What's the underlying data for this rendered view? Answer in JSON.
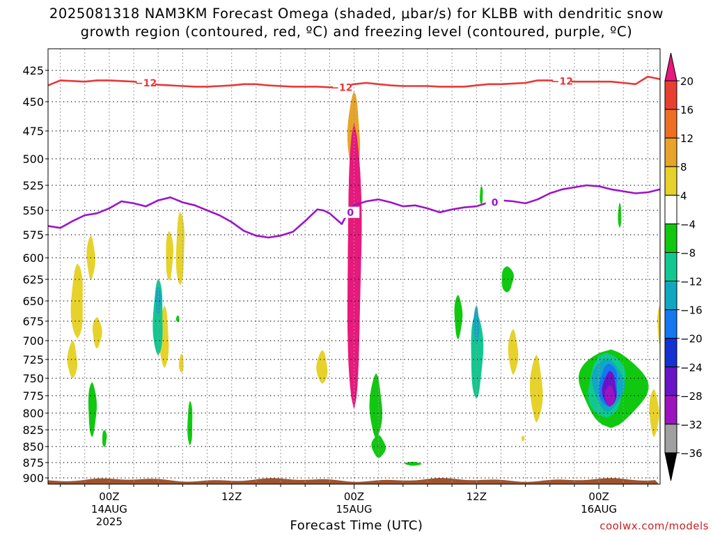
{
  "title_line1": "2025081318 NAM3KM Forecast Omega (shaded, μbar/s) for KLBB with dendritic snow",
  "title_line2": "growth region (contoured, red, ºC) and freezing level (contoured, purple, ºC)",
  "xlabel": "Forecast Time (UTC)",
  "credit": "coolwx.com/models",
  "chart_data": {
    "type": "heatmap",
    "title": "2025081318 NAM3KM Forecast Omega (shaded, μbar/s) for KLBB with dendritic snow growth region (contoured, red, ºC) and freezing level (contoured, purple, ºC)",
    "xlabel": "Forecast Time (UTC)",
    "ylabel": "",
    "x_unit": "hours since 2025-08-13 18Z",
    "xlim": [
      1,
      51
    ],
    "ylim": [
      906,
      400
    ],
    "y_ticks": [
      425,
      450,
      475,
      500,
      525,
      550,
      575,
      600,
      625,
      650,
      675,
      700,
      725,
      750,
      775,
      800,
      825,
      850,
      875,
      900
    ],
    "x_ticks": [
      {
        "x": 6,
        "label": "00Z",
        "sub": [
          "14AUG",
          "2025"
        ]
      },
      {
        "x": 16,
        "label": "12Z",
        "sub": []
      },
      {
        "x": 26,
        "label": "00Z",
        "sub": [
          "15AUG"
        ]
      },
      {
        "x": 36,
        "label": "12Z",
        "sub": []
      },
      {
        "x": 46,
        "label": "00Z",
        "sub": [
          "16AUG"
        ]
      }
    ],
    "grid": true,
    "colorbar": {
      "labels": [
        "20",
        "16",
        "12",
        "8",
        "4",
        "−4",
        "−8",
        "−12",
        "−16",
        "−20",
        "−24",
        "−28",
        "−32",
        "−36"
      ],
      "levels": [
        20,
        16,
        12,
        8,
        4,
        -4,
        -8,
        -12,
        -16,
        -20,
        -24,
        -28,
        -32,
        -36
      ],
      "colors": [
        "#e8187c",
        "#e84030",
        "#ee6e22",
        "#e8a428",
        "#e6d22a",
        "#ffffff",
        "#10c810",
        "#10c890",
        "#10a8c0",
        "#1478f0",
        "#1432d2",
        "#6a14c8",
        "#9c14c0",
        "#a0a0a0",
        "#000000"
      ]
    },
    "minus12_contour": {
      "color": "#e83838",
      "label": "−12",
      "points": [
        [
          1,
          437
        ],
        [
          2,
          433
        ],
        [
          3,
          433.5
        ],
        [
          4,
          434
        ],
        [
          5,
          433
        ],
        [
          6,
          433
        ],
        [
          7,
          433.5
        ],
        [
          8,
          434
        ],
        [
          9,
          435
        ],
        [
          10,
          436.5
        ],
        [
          11,
          437
        ],
        [
          12,
          437.5
        ],
        [
          13,
          438
        ],
        [
          14,
          438
        ],
        [
          15,
          437.5
        ],
        [
          16,
          437
        ],
        [
          17,
          436
        ],
        [
          18,
          436
        ],
        [
          19,
          437
        ],
        [
          20,
          437.5
        ],
        [
          21,
          438
        ],
        [
          22,
          438
        ],
        [
          23,
          438
        ],
        [
          24,
          438.5
        ],
        [
          25,
          438.5
        ],
        [
          26,
          436
        ],
        [
          27,
          435
        ],
        [
          28,
          436
        ],
        [
          29,
          437
        ],
        [
          30,
          437.5
        ],
        [
          31,
          437.5
        ],
        [
          32,
          437.5
        ],
        [
          33,
          438
        ],
        [
          34,
          438
        ],
        [
          35,
          438
        ],
        [
          36,
          437
        ],
        [
          37,
          436
        ],
        [
          38,
          436
        ],
        [
          39,
          435.5
        ],
        [
          40,
          435
        ],
        [
          41,
          433
        ],
        [
          42,
          433
        ],
        [
          43,
          433.5
        ],
        [
          44,
          434
        ],
        [
          45,
          434
        ],
        [
          46,
          434
        ],
        [
          47,
          434
        ],
        [
          48,
          435
        ],
        [
          49,
          436
        ],
        [
          50,
          430
        ],
        [
          51,
          432
        ]
      ],
      "label_x": [
        9,
        25,
        43
      ]
    },
    "freezing_contour": {
      "color": "#9c14c8",
      "label": "0",
      "points": [
        [
          1,
          566
        ],
        [
          2,
          568
        ],
        [
          3,
          561
        ],
        [
          4,
          555
        ],
        [
          5,
          553
        ],
        [
          6,
          548
        ],
        [
          7,
          541
        ],
        [
          8,
          543
        ],
        [
          9,
          546
        ],
        [
          10,
          540
        ],
        [
          11,
          537
        ],
        [
          12,
          542
        ],
        [
          13,
          545
        ],
        [
          14,
          550
        ],
        [
          15,
          555
        ],
        [
          16,
          562
        ],
        [
          17,
          571
        ],
        [
          18,
          576
        ],
        [
          19,
          578
        ],
        [
          20,
          576
        ],
        [
          21,
          572
        ],
        [
          22,
          561
        ],
        [
          23,
          549
        ],
        [
          23.5,
          550
        ],
        [
          24,
          553
        ],
        [
          25,
          564
        ],
        [
          25.5,
          552
        ],
        [
          26,
          545
        ],
        [
          27,
          541
        ],
        [
          28,
          539
        ],
        [
          29,
          542
        ],
        [
          30,
          546
        ],
        [
          31,
          545
        ],
        [
          32,
          548
        ],
        [
          33,
          552
        ],
        [
          34,
          549
        ],
        [
          35,
          547
        ],
        [
          36,
          546
        ],
        [
          37,
          542
        ],
        [
          38,
          540
        ],
        [
          39,
          541
        ],
        [
          40,
          543
        ],
        [
          41,
          539
        ],
        [
          42,
          533
        ],
        [
          43,
          529
        ],
        [
          44,
          527
        ],
        [
          45,
          525
        ],
        [
          46,
          526
        ],
        [
          47,
          529
        ],
        [
          48,
          531
        ],
        [
          49,
          533
        ],
        [
          50,
          532
        ],
        [
          51,
          529
        ]
      ],
      "label_x": [
        25.7,
        37.5
      ]
    },
    "omega_features": [
      {
        "sign": "+",
        "x": 26,
        "p": 610,
        "w": 0.6,
        "h": 315,
        "v": 20
      },
      {
        "sign": "+",
        "x": 26,
        "p": 478,
        "w": 0.45,
        "h": 75,
        "v": 8
      },
      {
        "sign": "+",
        "x": 26,
        "p": 700,
        "w": 0.35,
        "h": 60,
        "v": 14
      },
      {
        "sign": "+",
        "x": 25.9,
        "p": 725,
        "w": 0.35,
        "h": 40,
        "v": 6
      },
      {
        "sign": "+",
        "x": 3.4,
        "p": 650,
        "w": 0.5,
        "h": 90,
        "v": 6
      },
      {
        "sign": "+",
        "x": 3.0,
        "p": 725,
        "w": 0.35,
        "h": 50,
        "v": 5
      },
      {
        "sign": "+",
        "x": 4.5,
        "p": 600,
        "w": 0.3,
        "h": 50,
        "v": 5
      },
      {
        "sign": "+",
        "x": 5.0,
        "p": 690,
        "w": 0.35,
        "h": 40,
        "v": 5
      },
      {
        "sign": "+",
        "x": 10.5,
        "p": 695,
        "w": 0.35,
        "h": 80,
        "v": 6
      },
      {
        "sign": "+",
        "x": 10.9,
        "p": 598,
        "w": 0.3,
        "h": 55,
        "v": 5
      },
      {
        "sign": "+",
        "x": 11.8,
        "p": 590,
        "w": 0.35,
        "h": 80,
        "v": 5
      },
      {
        "sign": "+",
        "x": 11.9,
        "p": 730,
        "w": 0.18,
        "h": 25,
        "v": 5
      },
      {
        "sign": "+",
        "x": 23.4,
        "p": 735,
        "w": 0.4,
        "h": 45,
        "v": 5
      },
      {
        "sign": "+",
        "x": 39.0,
        "p": 715,
        "w": 0.35,
        "h": 60,
        "v": 5
      },
      {
        "sign": "+",
        "x": 40.9,
        "p": 765,
        "w": 0.45,
        "h": 95,
        "v": 6
      },
      {
        "sign": "+",
        "x": 50.5,
        "p": 800,
        "w": 0.35,
        "h": 70,
        "v": 6
      },
      {
        "sign": "+",
        "x": 51,
        "p": 680,
        "w": 0.2,
        "h": 50,
        "v": 5
      },
      {
        "sign": "+",
        "x": 39.8,
        "p": 838,
        "w": 0.1,
        "h": 8,
        "v": 5
      },
      {
        "sign": "-",
        "x": 10.0,
        "p": 670,
        "w": 0.4,
        "h": 95,
        "v": -12
      },
      {
        "sign": "-",
        "x": 10.0,
        "p": 650,
        "w": 0.2,
        "h": 35,
        "v": -16
      },
      {
        "sign": "-",
        "x": 4.6,
        "p": 795,
        "w": 0.32,
        "h": 80,
        "v": -7
      },
      {
        "sign": "-",
        "x": 5.6,
        "p": 838,
        "w": 0.18,
        "h": 25,
        "v": -7
      },
      {
        "sign": "-",
        "x": 12.6,
        "p": 815,
        "w": 0.2,
        "h": 65,
        "v": -7
      },
      {
        "sign": "-",
        "x": 11.6,
        "p": 672,
        "w": 0.12,
        "h": 8,
        "v": -7
      },
      {
        "sign": "-",
        "x": 27.8,
        "p": 790,
        "w": 0.45,
        "h": 95,
        "v": -7
      },
      {
        "sign": "-",
        "x": 28.0,
        "p": 850,
        "w": 0.5,
        "h": 35,
        "v": -8
      },
      {
        "sign": "-",
        "x": 30.8,
        "p": 877,
        "w": 0.6,
        "h": 6,
        "v": -7
      },
      {
        "sign": "-",
        "x": 34.5,
        "p": 670,
        "w": 0.3,
        "h": 55,
        "v": -7
      },
      {
        "sign": "-",
        "x": 36.0,
        "p": 720,
        "w": 0.5,
        "h": 115,
        "v": -10
      },
      {
        "sign": "-",
        "x": 36.0,
        "p": 680,
        "w": 0.2,
        "h": 50,
        "v": -14
      },
      {
        "sign": "-",
        "x": 38.5,
        "p": 625,
        "w": 0.5,
        "h": 30,
        "v": -7
      },
      {
        "sign": "-",
        "x": 36.4,
        "p": 535,
        "w": 0.12,
        "h": 18,
        "v": -7
      },
      {
        "sign": "-",
        "x": 47.7,
        "p": 555,
        "w": 0.12,
        "h": 25,
        "v": -7
      },
      {
        "sign": "-",
        "x": 47.0,
        "p": 765,
        "w": 2.6,
        "h": 110,
        "v": -8
      },
      {
        "sign": "-",
        "x": 46.6,
        "p": 760,
        "w": 1.6,
        "h": 90,
        "v": -11
      },
      {
        "sign": "-",
        "x": 46.7,
        "p": 760,
        "w": 1.2,
        "h": 75,
        "v": -15
      },
      {
        "sign": "-",
        "x": 46.8,
        "p": 760,
        "w": 0.8,
        "h": 60,
        "v": -20
      },
      {
        "sign": "-",
        "x": 46.9,
        "p": 765,
        "w": 0.55,
        "h": 50,
        "v": -26
      },
      {
        "sign": "-",
        "x": 46.9,
        "p": 775,
        "w": 0.35,
        "h": 30,
        "v": -30
      }
    ],
    "terrain": {
      "color": "#a0522d",
      "surface_p": 902
    }
  }
}
